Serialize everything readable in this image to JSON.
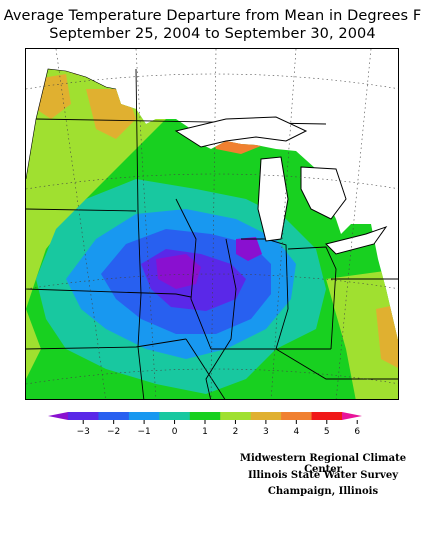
{
  "title_line1": "Average Temperature Departure from Mean in Degrees F",
  "title_line2": "September 25, 2004 to September 30, 2004",
  "legend": {
    "colors": [
      "#8a10d0",
      "#5a28e8",
      "#2860f0",
      "#1898f0",
      "#18c8a0",
      "#18d020",
      "#a0e030",
      "#e0b030",
      "#f08030",
      "#f01818",
      "#e8149a"
    ],
    "ticks": [
      "−3",
      "−2",
      "−1",
      "0",
      "1",
      "2",
      "3",
      "4",
      "5",
      "6"
    ],
    "tick_values": [
      -3,
      -2,
      -1,
      0,
      1,
      2,
      3,
      4,
      5,
      6
    ]
  },
  "credits": {
    "line1": "Midwestern Regional Climate Center",
    "line2": "Illinois State Water Survey",
    "line3": "Champaign, Illinois"
  }
}
